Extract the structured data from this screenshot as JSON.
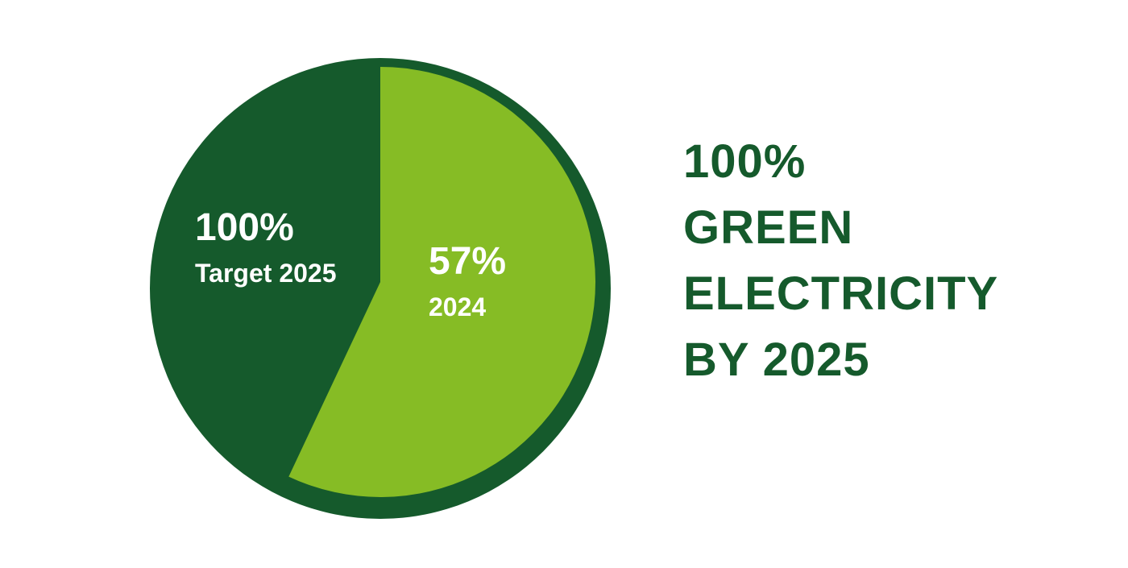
{
  "chart_data": {
    "type": "pie",
    "categories": [
      "Target 2025",
      "2024"
    ],
    "values": [
      100,
      57
    ],
    "value_labels": [
      "100%",
      "57%"
    ],
    "colors": [
      "#155a2c",
      "#86bc25"
    ],
    "headline": [
      "100%",
      "GREEN",
      "ELECTRICITY",
      "BY 2025"
    ]
  }
}
